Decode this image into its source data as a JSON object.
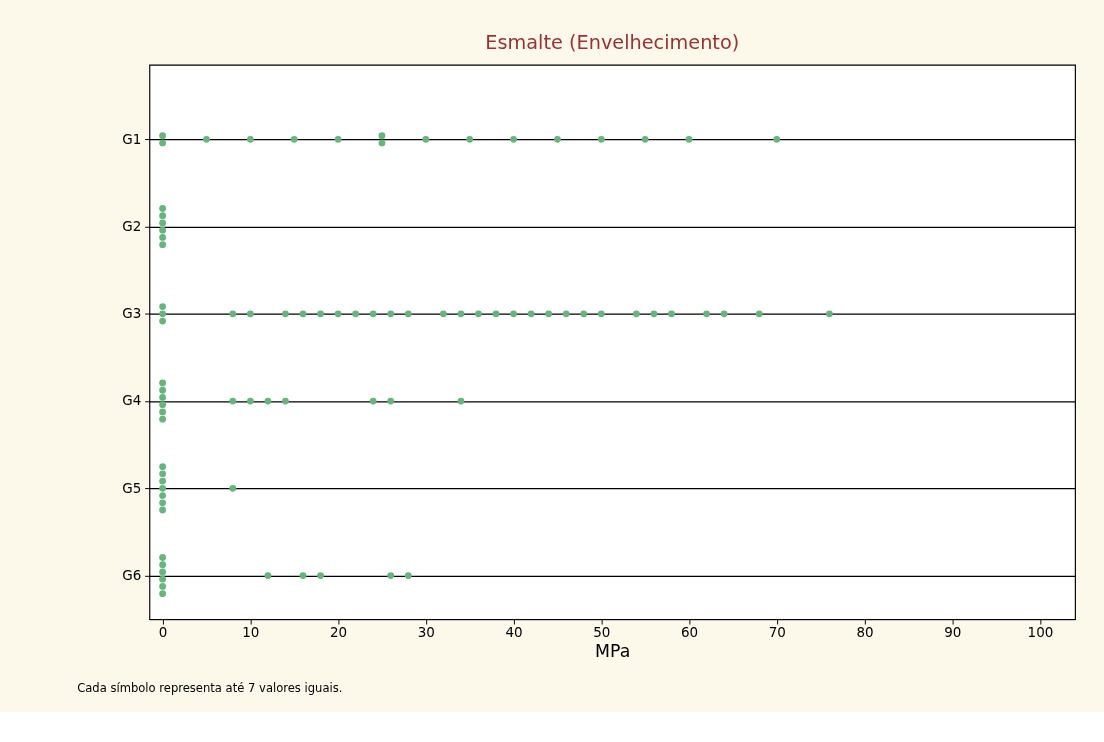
{
  "chart_data": {
    "type": "scatter",
    "orientation": "horizontal",
    "title": "Esmalte (Envelhecimento)",
    "xlabel": "MPa",
    "annotations": [
      "Cada símbolo representa até 7 valores iguais."
    ],
    "categories": [
      "G1",
      "G2",
      "G3",
      "G4",
      "G5",
      "G6"
    ],
    "xlim": [
      -1.5,
      104
    ],
    "xticks": [
      0,
      10,
      20,
      30,
      40,
      50,
      60,
      70,
      80,
      90,
      100
    ],
    "grid": "y",
    "marker": "circle",
    "legend": false,
    "series": [
      {
        "color": "#66b57f",
        "x": [
          "G1",
          "G1",
          "G1",
          "G1",
          "G1",
          "G1",
          "G1",
          "G1",
          "G1",
          "G1",
          "G1",
          "G1",
          "G1",
          "G1",
          "G1",
          "G1",
          "G2",
          "G2",
          "G2",
          "G2",
          "G2",
          "G2",
          "G3",
          "G3",
          "G3",
          "G3",
          "G3",
          "G3",
          "G3",
          "G3",
          "G3",
          "G3",
          "G3",
          "G3",
          "G3",
          "G3",
          "G3",
          "G3",
          "G3",
          "G3",
          "G3",
          "G3",
          "G3",
          "G3",
          "G3",
          "G3",
          "G3",
          "G3",
          "G3",
          "G3",
          "G3",
          "G3",
          "G4",
          "G4",
          "G4",
          "G4",
          "G4",
          "G4",
          "G4",
          "G4",
          "G4",
          "G4",
          "G4",
          "G4",
          "G4",
          "G5",
          "G5",
          "G5",
          "G5",
          "G5",
          "G5",
          "G5",
          "G5",
          "G6",
          "G6",
          "G6",
          "G6",
          "G6",
          "G6",
          "G6",
          "G6",
          "G6",
          "G6",
          "G6"
        ],
        "values": [
          0,
          0,
          5,
          10,
          15,
          20,
          25,
          25,
          30,
          35,
          40,
          45,
          50,
          55,
          60,
          70,
          0,
          0,
          0,
          0,
          0,
          0,
          0,
          0,
          0,
          8,
          10,
          14,
          16,
          18,
          20,
          22,
          24,
          26,
          28,
          32,
          34,
          36,
          38,
          40,
          42,
          44,
          46,
          48,
          50,
          54,
          56,
          58,
          62,
          64,
          68,
          76,
          0,
          0,
          0,
          0,
          0,
          0,
          8,
          10,
          12,
          14,
          24,
          26,
          34,
          0,
          0,
          0,
          0,
          0,
          0,
          0,
          8,
          0,
          0,
          0,
          0,
          0,
          0,
          12,
          16,
          18,
          26,
          28
        ]
      }
    ]
  }
}
